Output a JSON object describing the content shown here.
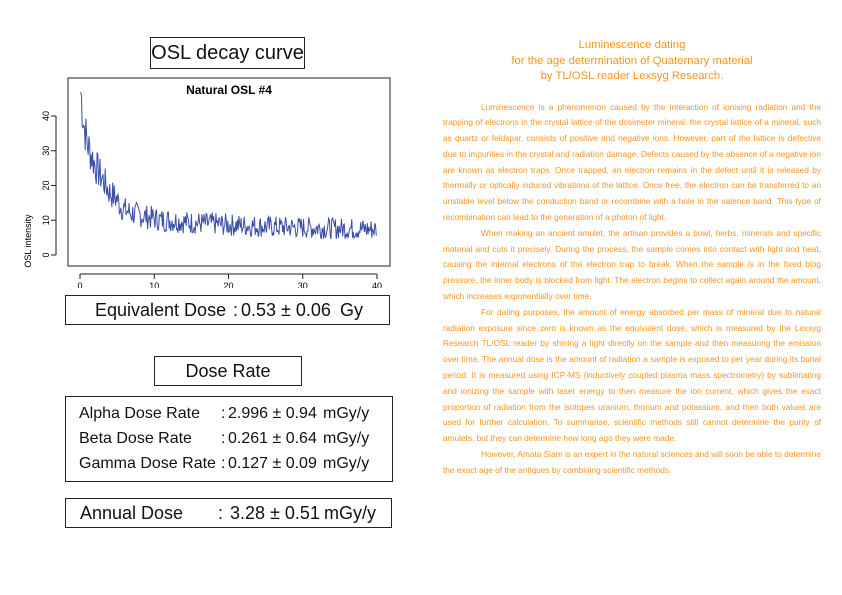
{
  "osl_section": {
    "title": "OSL decay curve"
  },
  "chart_data": {
    "type": "line",
    "title": "Natural OSL #4",
    "xlabel": "",
    "ylabel": "OSL intensity",
    "xlim": [
      0,
      40
    ],
    "ylim": [
      0,
      45
    ],
    "x_ticks": [
      0,
      10,
      20,
      30,
      40
    ],
    "y_ticks": [
      0,
      10,
      20,
      30,
      40
    ],
    "grid": false,
    "line_color": "#3a4fa8",
    "series": [
      {
        "x": [
          0.1,
          0.5,
          1,
          1.5,
          2,
          2.5,
          3,
          3.5,
          4,
          4.5,
          5,
          5.5,
          6,
          7,
          8,
          9,
          10,
          11,
          12,
          13,
          14,
          15,
          16,
          17,
          18,
          19,
          20,
          21,
          22,
          23,
          24,
          25,
          26,
          27,
          28,
          29,
          30,
          31,
          32,
          33,
          34,
          35,
          36,
          37,
          38,
          39,
          40
        ],
        "values": [
          47,
          38,
          32,
          29,
          26,
          24,
          22,
          20,
          18,
          17,
          16,
          14,
          13,
          12,
          11.5,
          11,
          10.5,
          10,
          10,
          9.8,
          9.5,
          9.3,
          9.2,
          9,
          9,
          8.8,
          8.7,
          8.6,
          8.5,
          8.4,
          8.3,
          8.2,
          8.1,
          8,
          8,
          7.9,
          7.9,
          7.8,
          7.8,
          7.7,
          7.7,
          7.6,
          7.6,
          7.5,
          7.5,
          7.4,
          7.4
        ]
      }
    ]
  },
  "equivalent_dose": {
    "label": "Equivalent Dose",
    "colon": ":",
    "value": "0.53 ± 0.06",
    "unit": "Gy"
  },
  "dose_rate": {
    "title": "Dose Rate",
    "rows": [
      {
        "label": "Alpha Dose Rate",
        "colon": ":",
        "value": "2.996 ± 0.94",
        "unit": "mGy/y"
      },
      {
        "label": "Beta Dose Rate",
        "colon": ":",
        "value": "0.261 ± 0.64",
        "unit": "mGy/y"
      },
      {
        "label": "Gamma Dose Rate",
        "colon": ":",
        "value": "0.127 ± 0.09",
        "unit": "mGy/y"
      }
    ]
  },
  "annual_dose": {
    "label": "Annual Dose",
    "colon": ":",
    "value": "3.28 ± 0.51",
    "unit": "mGy/y"
  },
  "article": {
    "accent_color": "#f7941d",
    "title_lines": [
      "Luminescence dating",
      "for the age determination of Quaternary material",
      "by TL/OSL reader Lexsyg Research."
    ],
    "paragraphs": [
      "Luminescence is a phenomenon caused by the interaction of ionising radiation and the trapping of electrons in the crystal lattice of the dosimeter mineral. the crystal lattice of a mineral, such as quartz or feldspar, consists of positive and negative ions. However, part of the lattice is defective due to impurities in the crystal and radiation damage. Defects caused by the absence of a negative ion are known as electron traps. Once trapped, an electron remains in the defect until it is released by thermally or optically induced vibrations of the lattice. Once free, the electron can be transferred to an unstable level below the conduction band or recombine with a hole in the valence band. This type of recombination can lead to the generation of a photon of light.",
      "When making an ancient amulet, the artisan provides a bowl, herbs, minerals and specific material and cuts it precisely. During the process, the sample comes into contact with light and heat, causing the internal electrons of the electron trap to break. When the sample is in the fixed blog pressure, the inner body is blocked from light. The electron begins to collect again around the amount, which increases exponentially over time.",
      "For dating purposes, the amount of energy absorbed per mass of mineral due to natural radiation exposure since zero is known as the equivalent dose, which is measured by the Lexsyg Research TL/OSL reader by shining a light directly on the sample and then measuring the emission over time. The annual dose is the amount of radiation a sample is exposed to per year during its burial period. It is measured using ICP-MS (inductively coupled plasma mass spectrometry) by sublimating and ionizing the sample with laser energy to then measure the ion current, which gives the exact proportion of radiation from the isotopes uranium, thorium and potassium, and then both values are used for further calculation. To summarise, scientific methods still cannot determine the purity of amulets, but they can determine how long ago they were made.",
      "However, Amata Siam is an expert in the natural sciences and will soon be able to determine the exact age of the antiques by combining scientific methods."
    ]
  }
}
